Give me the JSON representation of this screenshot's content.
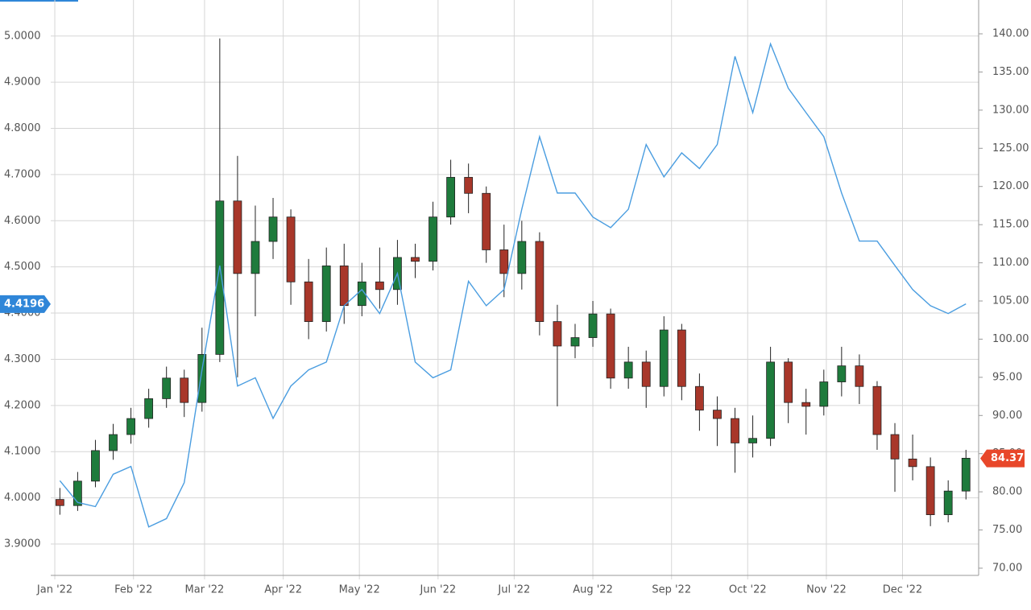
{
  "chart_data": {
    "type": "candlestick",
    "x": [
      2,
      9,
      16,
      23,
      30,
      37,
      44,
      51,
      58,
      65,
      72,
      79,
      86,
      93,
      100,
      107,
      114,
      121,
      128,
      135,
      142,
      149,
      156,
      163,
      170,
      177,
      184,
      191,
      198,
      205,
      212,
      219,
      226,
      233,
      240,
      247,
      254,
      261,
      268,
      275,
      282,
      289,
      296,
      303,
      310,
      317,
      324,
      331,
      338,
      345,
      352,
      359
    ],
    "series": [
      {
        "type": "candlestick",
        "axis": "y2",
        "up_color": "#1e7b3c",
        "down_color": "#a8372a",
        "open": [
          79.0,
          78.2,
          81.4,
          85.4,
          87.5,
          89.6,
          92.2,
          94.9,
          91.7,
          98.0,
          118.1,
          108.6,
          112.8,
          116.0,
          107.5,
          102.3,
          109.6,
          104.4,
          107.5,
          106.5,
          110.7,
          110.2,
          116.0,
          121.2,
          119.1,
          111.7,
          108.6,
          112.8,
          102.3,
          99.1,
          100.2,
          103.3,
          94.9,
          97.0,
          93.8,
          101.2,
          93.8,
          90.7,
          89.6,
          86.4,
          87.0,
          97.0,
          91.7,
          91.2,
          94.4,
          96.5,
          93.8,
          87.5,
          84.3,
          83.3,
          77.0,
          80.1
        ],
        "high": [
          80.5,
          82.6,
          86.8,
          88.9,
          91.0,
          93.5,
          96.4,
          96.0,
          101.5,
          139.4,
          124.0,
          117.5,
          118.5,
          117.0,
          110.5,
          112.0,
          112.5,
          110.0,
          112.0,
          113.0,
          112.5,
          118.0,
          123.5,
          123.0,
          120.0,
          115.0,
          115.5,
          114.0,
          104.5,
          102.0,
          105.0,
          104.0,
          99.0,
          98.5,
          103.0,
          102.0,
          95.5,
          92.5,
          91.0,
          90.0,
          99.0,
          97.5,
          93.5,
          96.0,
          99.0,
          98.0,
          94.5,
          89.0,
          87.5,
          84.5,
          81.5,
          85.5
        ],
        "low": [
          77.0,
          77.5,
          80.6,
          84.2,
          86.3,
          88.4,
          91.0,
          89.8,
          90.5,
          97.0,
          95.0,
          103.0,
          110.5,
          104.5,
          100.0,
          101.0,
          102.0,
          103.0,
          104.0,
          104.5,
          108.0,
          109.0,
          115.0,
          116.5,
          110.0,
          105.5,
          106.5,
          100.5,
          91.2,
          97.5,
          99.0,
          93.5,
          93.5,
          91.0,
          92.5,
          92.0,
          88.0,
          86.0,
          82.5,
          84.5,
          86.0,
          89.0,
          87.5,
          90.0,
          92.5,
          91.5,
          85.5,
          80.0,
          81.5,
          75.5,
          76.0,
          79.0
        ],
        "close": [
          78.2,
          81.4,
          85.4,
          87.5,
          89.6,
          92.2,
          94.9,
          91.7,
          98.0,
          118.1,
          108.6,
          112.8,
          116.0,
          107.5,
          102.3,
          109.6,
          104.4,
          107.5,
          106.5,
          110.7,
          110.2,
          116.0,
          121.2,
          119.1,
          111.7,
          108.6,
          112.8,
          102.3,
          99.1,
          100.2,
          103.3,
          94.9,
          97.0,
          93.8,
          101.2,
          93.8,
          90.7,
          89.6,
          86.4,
          87.0,
          97.0,
          91.7,
          91.2,
          94.4,
          96.5,
          93.8,
          87.5,
          84.3,
          83.3,
          77.0,
          80.1,
          84.4
        ]
      },
      {
        "type": "line",
        "axis": "y",
        "color": "#4a9de0",
        "values": [
          4.037,
          3.99,
          3.981,
          4.051,
          4.068,
          3.937,
          3.955,
          4.033,
          4.277,
          4.503,
          4.242,
          4.26,
          4.172,
          4.242,
          4.277,
          4.294,
          4.416,
          4.451,
          4.399,
          4.486,
          4.294,
          4.26,
          4.277,
          4.469,
          4.416,
          4.451,
          4.625,
          4.782,
          4.66,
          4.66,
          4.608,
          4.585,
          4.625,
          4.765,
          4.695,
          4.747,
          4.713,
          4.765,
          4.956,
          4.834,
          4.983,
          4.887,
          4.834,
          4.782,
          4.66,
          4.556,
          4.556,
          4.503,
          4.451,
          4.416,
          4.399,
          4.42
        ]
      }
    ],
    "markers": [
      {
        "value": 4.4196,
        "label": "4.4196",
        "axis": "y",
        "color": "#2f86d8"
      },
      {
        "value": 84.37,
        "label": "84.37",
        "axis": "y2",
        "color": "#e8472a"
      }
    ],
    "xlim": [
      -1.6,
      364
    ],
    "xticks": [
      {
        "value": 0,
        "label": "Jan '22"
      },
      {
        "value": 31,
        "label": "Feb '22"
      },
      {
        "value": 59,
        "label": "Mar '22"
      },
      {
        "value": 90,
        "label": "Apr '22"
      },
      {
        "value": 120,
        "label": "May '22"
      },
      {
        "value": 151,
        "label": "Jun '22"
      },
      {
        "value": 181,
        "label": "Jul '22"
      },
      {
        "value": 212,
        "label": "Aug '22"
      },
      {
        "value": 243,
        "label": "Sep '22"
      },
      {
        "value": 273,
        "label": "Oct '22"
      },
      {
        "value": 304,
        "label": "Nov '22"
      },
      {
        "value": 334,
        "label": "Dec '22"
      }
    ],
    "ylim": [
      3.832,
      5.078
    ],
    "yticks": [
      {
        "value": 3.9,
        "label": "3.9000"
      },
      {
        "value": 4.0,
        "label": "4.0000"
      },
      {
        "value": 4.1,
        "label": "4.1000"
      },
      {
        "value": 4.2,
        "label": "4.2000"
      },
      {
        "value": 4.3,
        "label": "4.3000"
      },
      {
        "value": 4.4,
        "label": "4.4000"
      },
      {
        "value": 4.5,
        "label": "4.5000"
      },
      {
        "value": 4.6,
        "label": "4.6000"
      },
      {
        "value": 4.7,
        "label": "4.7000"
      },
      {
        "value": 4.8,
        "label": "4.8000"
      },
      {
        "value": 4.9,
        "label": "4.9000"
      },
      {
        "value": 5.0,
        "label": "5.0000"
      }
    ],
    "y2lim": [
      69.05,
      144.43
    ],
    "y2ticks": [
      {
        "value": 70,
        "label": "70.00"
      },
      {
        "value": 75,
        "label": "75.00"
      },
      {
        "value": 80,
        "label": "80.00"
      },
      {
        "value": 85,
        "label": "85.00"
      },
      {
        "value": 90,
        "label": "90.00"
      },
      {
        "value": 95,
        "label": "95.00"
      },
      {
        "value": 100,
        "label": "100.00"
      },
      {
        "value": 105,
        "label": "105.00"
      },
      {
        "value": 110,
        "label": "110.00"
      },
      {
        "value": 115,
        "label": "115.00"
      },
      {
        "value": 120,
        "label": "120.00"
      },
      {
        "value": 125,
        "label": "125.00"
      },
      {
        "value": 130,
        "label": "130.00"
      },
      {
        "value": 135,
        "label": "135.00"
      },
      {
        "value": 140,
        "label": "140.00"
      }
    ],
    "grid": true
  }
}
